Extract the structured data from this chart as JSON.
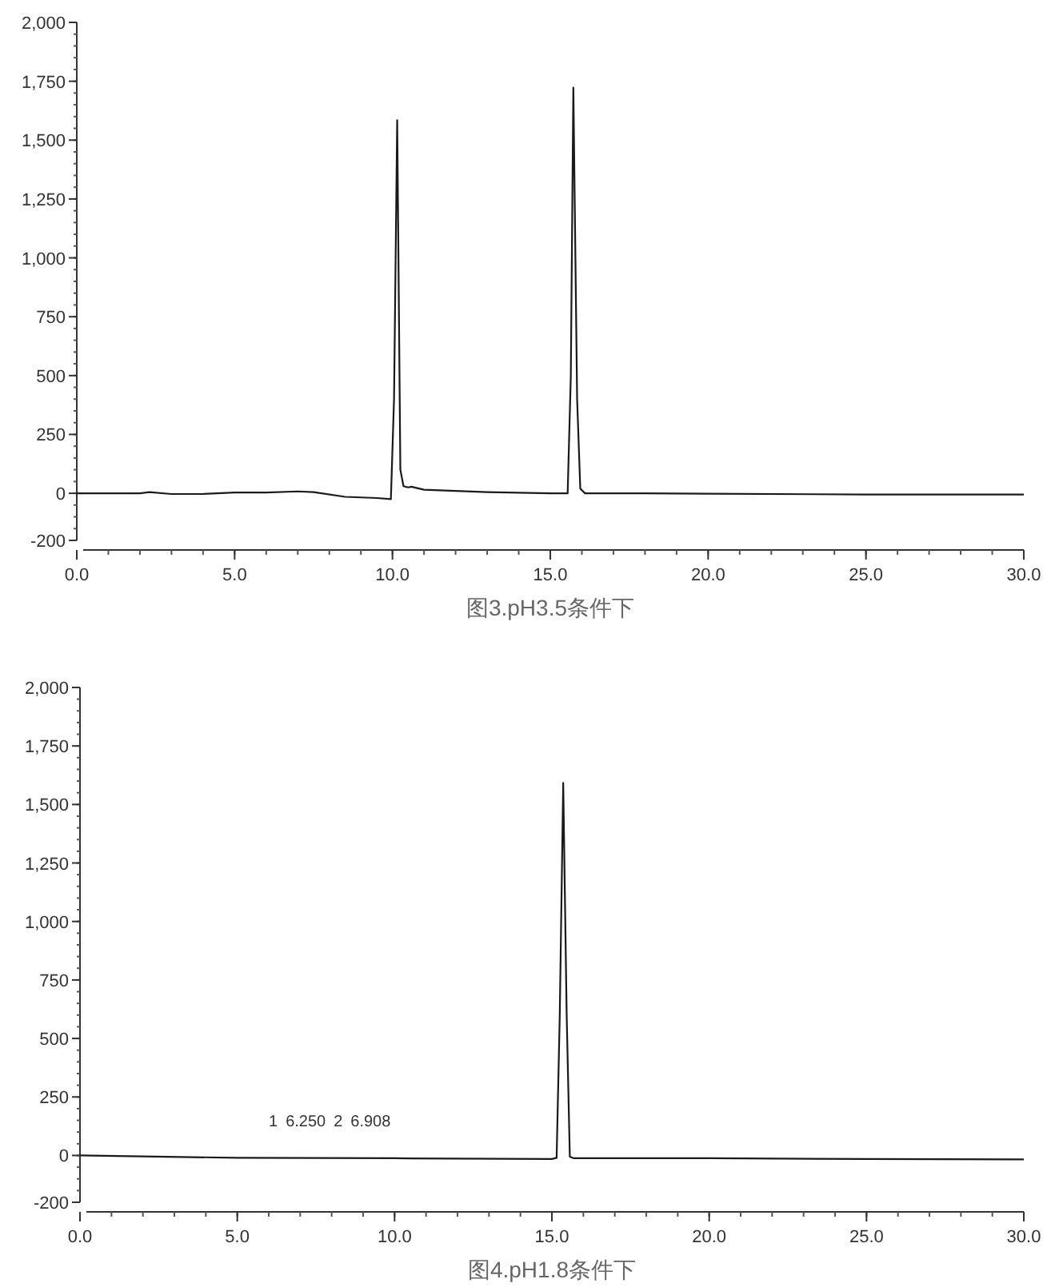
{
  "chart_data": [
    {
      "type": "line",
      "title": "图3.pH3.5条件下",
      "xlim": [
        0,
        30
      ],
      "ylim": [
        -200,
        2000
      ],
      "xticks": [
        {
          "value": 0,
          "label": "0.0"
        },
        {
          "value": 5,
          "label": "5.0"
        },
        {
          "value": 10,
          "label": "10.0"
        },
        {
          "value": 15,
          "label": "15.0"
        },
        {
          "value": 20,
          "label": "20.0"
        },
        {
          "value": 25,
          "label": "25.0"
        },
        {
          "value": 30,
          "label": "30.0"
        }
      ],
      "yticks": [
        -200,
        0,
        250,
        500,
        750,
        {
          "value": 1000,
          "label": "1,000"
        },
        {
          "value": 1250,
          "label": "1,250"
        },
        {
          "value": 1500,
          "label": "1,500"
        },
        {
          "value": 1750,
          "label": "1,750"
        },
        {
          "value": 2000,
          "label": "2,000"
        }
      ],
      "grid": false,
      "marker": "none",
      "line_style": "solid",
      "series": [
        {
          "color": "#1a1a1a",
          "x": [
            0,
            2,
            2.3,
            3,
            4,
            5,
            6,
            7,
            7.5,
            8.5,
            9.5,
            9.95,
            10.05,
            10.15,
            10.25,
            10.35,
            10.5,
            10.6,
            11,
            12,
            13,
            15,
            15.55,
            15.65,
            15.73,
            15.85,
            15.95,
            16.1,
            18,
            20,
            25,
            30
          ],
          "values": [
            0,
            0,
            5,
            -3,
            -3,
            3,
            3,
            8,
            5,
            -15,
            -20,
            -25,
            400,
            1585,
            100,
            30,
            25,
            28,
            15,
            10,
            5,
            0,
            0,
            500,
            1723,
            400,
            20,
            0,
            0,
            -2,
            -5,
            -5
          ]
        }
      ]
    },
    {
      "type": "line",
      "title": "图4.pH1.8条件下",
      "xlim": [
        0,
        30
      ],
      "ylim": [
        -200,
        2000
      ],
      "xticks": [
        {
          "value": 0,
          "label": "0.0"
        },
        {
          "value": 5,
          "label": "5.0"
        },
        {
          "value": 10,
          "label": "10.0"
        },
        {
          "value": 15,
          "label": "15.0"
        },
        {
          "value": 20,
          "label": "20.0"
        },
        {
          "value": 25,
          "label": "25.0"
        },
        {
          "value": 30,
          "label": "30.0"
        }
      ],
      "yticks": [
        -200,
        0,
        250,
        500,
        750,
        {
          "value": 1000,
          "label": "1,000"
        },
        {
          "value": 1250,
          "label": "1,250"
        },
        {
          "value": 1500,
          "label": "1,500"
        },
        {
          "value": 1750,
          "label": "1,750"
        },
        {
          "value": 2000,
          "label": "2,000"
        }
      ],
      "grid": false,
      "marker": "none",
      "line_style": "solid",
      "annotations": [
        "1",
        "6.250",
        "2",
        "6.908"
      ],
      "series": [
        {
          "color": "#1a1a1a",
          "x": [
            0,
            5,
            10,
            15,
            15.15,
            15.25,
            15.36,
            15.47,
            15.57,
            15.7,
            20,
            25,
            30
          ],
          "values": [
            0,
            -10,
            -12,
            -15,
            -10,
            600,
            1592,
            600,
            -5,
            -12,
            -12,
            -15,
            -17
          ]
        }
      ]
    }
  ]
}
